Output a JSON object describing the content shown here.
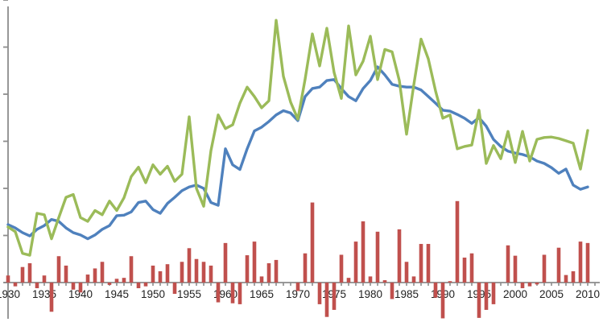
{
  "chart_data": {
    "type": "line+bar combo",
    "title": "",
    "xlabel": "",
    "ylabel": "",
    "x_years": {
      "start": 1930,
      "end": 2010,
      "step": 1
    },
    "x_tick_labels": [
      "1930",
      "1935",
      "1940",
      "1945",
      "1950",
      "1955",
      "1960",
      "1965",
      "1970",
      "1975",
      "1980",
      "1985",
      "1990",
      "1995",
      "2000",
      "2005",
      "2010"
    ],
    "x_minor_tick_every_year": true,
    "ylim": [
      -1,
      6
    ],
    "y_major_tick_interval": 1,
    "y_tick_labels_visible": false,
    "grid": false,
    "legend": "none",
    "axis_color": "#8c8c8c",
    "label_color": "#1f1f1f",
    "background_color": "#ffffff",
    "series": [
      {
        "name": "red-bars",
        "type": "bar",
        "color": "#c0504d",
        "values": [
          0.15,
          -0.08,
          0.33,
          0.41,
          -0.12,
          0.15,
          -0.62,
          0.56,
          0.36,
          -0.15,
          -0.21,
          0.17,
          0.3,
          0.44,
          -0.05,
          0.08,
          0.1,
          0.56,
          -0.12,
          -0.08,
          0.36,
          0.24,
          0.39,
          -0.24,
          0.44,
          0.73,
          0.5,
          0.44,
          0.36,
          -0.42,
          0.84,
          -0.44,
          -0.46,
          0.58,
          0.87,
          0.13,
          0.41,
          0.48,
          0,
          0,
          -0.18,
          0.62,
          1.7,
          -0.46,
          -0.73,
          -0.58,
          0.59,
          0.1,
          0.87,
          1.3,
          0.13,
          1.08,
          0.05,
          -0.35,
          1.13,
          0.44,
          0.13,
          0.82,
          0.82,
          -0.32,
          -0.76,
          0.03,
          1.73,
          0.53,
          0.62,
          -0.75,
          -0.58,
          -0.46,
          0,
          0.79,
          0.57,
          -0.12,
          -0.08,
          -0.04,
          0.59,
          0,
          0.74,
          0.16,
          0.24,
          0.87,
          0.84
        ]
      },
      {
        "name": "blue-line",
        "type": "line",
        "color": "#4f81bd",
        "values": [
          1.23,
          1.16,
          1.06,
          0.99,
          1.13,
          1.21,
          1.34,
          1.3,
          1.16,
          1.06,
          1.01,
          0.93,
          1.01,
          1.13,
          1.21,
          1.42,
          1.43,
          1.5,
          1.7,
          1.73,
          1.55,
          1.47,
          1.68,
          1.81,
          1.95,
          2.03,
          2.07,
          2.0,
          1.7,
          1.64,
          2.84,
          2.5,
          2.4,
          2.84,
          3.22,
          3.3,
          3.42,
          3.56,
          3.65,
          3.6,
          3.44,
          3.95,
          4.12,
          4.15,
          4.29,
          4.31,
          4.12,
          3.95,
          3.86,
          4.12,
          4.29,
          4.58,
          4.41,
          4.21,
          4.17,
          4.15,
          4.15,
          4.09,
          3.95,
          3.81,
          3.66,
          3.64,
          3.57,
          3.49,
          3.38,
          3.5,
          3.32,
          3.04,
          2.89,
          2.79,
          2.75,
          2.72,
          2.67,
          2.58,
          2.53,
          2.44,
          2.32,
          2.41,
          2.07,
          1.98,
          2.03
        ]
      },
      {
        "name": "green-line",
        "type": "line",
        "color": "#9bbb59",
        "values": [
          1.18,
          1.08,
          0.62,
          0.58,
          1.47,
          1.44,
          0.93,
          1.38,
          1.81,
          1.87,
          1.38,
          1.3,
          1.53,
          1.44,
          1.73,
          1.53,
          1.8,
          2.25,
          2.45,
          2.12,
          2.5,
          2.3,
          2.47,
          2.15,
          2.3,
          3.52,
          2.0,
          1.62,
          2.8,
          3.56,
          3.27,
          3.35,
          3.81,
          4.15,
          3.95,
          3.71,
          3.86,
          5.57,
          4.38,
          3.83,
          3.47,
          4.32,
          5.28,
          4.6,
          5.4,
          4.46,
          3.91,
          5.45,
          4.41,
          4.7,
          5.23,
          4.31,
          4.95,
          4.9,
          4.29,
          3.15,
          4.2,
          5.17,
          4.75,
          4.07,
          3.49,
          3.56,
          2.84,
          2.89,
          2.92,
          3.66,
          2.53,
          2.91,
          2.63,
          3.21,
          2.55,
          3.21,
          2.58,
          3.04,
          3.08,
          3.09,
          3.06,
          3.01,
          2.96,
          2.41,
          3.23
        ]
      }
    ]
  }
}
